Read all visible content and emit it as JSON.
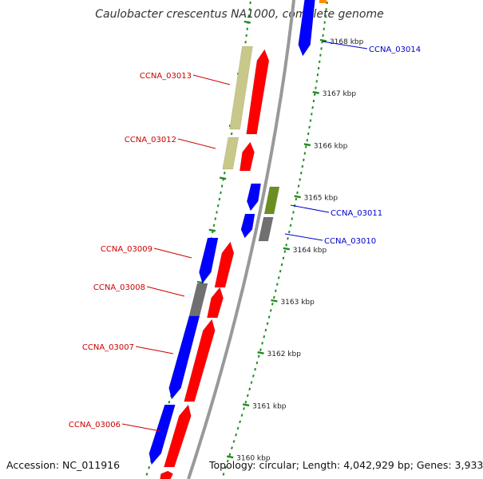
{
  "title": "Caulobacter crescentus NA1000, complete genome",
  "footer": {
    "accession": "Accession: NC_011916",
    "topology": "Topology: circular; Length: 4,042,929 bp; Genes: 3,933"
  },
  "colors": {
    "forward": "#ff0000",
    "reverse": "#0000ff",
    "olive": "#c8c88a",
    "green": "#6b8e23",
    "gray": "#707070",
    "backbone": "#999999",
    "ticks": "#228b22",
    "orange": "#ff8c00",
    "label_forward": "#cc0000",
    "label_reverse": "#0000cc"
  },
  "kbp_labels": [
    "3168 kbp",
    "3167 kbp",
    "3166 kbp",
    "3165 kbp",
    "3164 kbp",
    "3163 kbp",
    "3162 kbp",
    "3161 kbp",
    "3160 kbp"
  ],
  "genes": [
    {
      "name": "CCNA_03014",
      "side": "right"
    },
    {
      "name": "CCNA_03013",
      "side": "left"
    },
    {
      "name": "CCNA_03012",
      "side": "left"
    },
    {
      "name": "CCNA_03011",
      "side": "right"
    },
    {
      "name": "CCNA_03010",
      "side": "right"
    },
    {
      "name": "CCNA_03009",
      "side": "left"
    },
    {
      "name": "CCNA_03008",
      "side": "left"
    },
    {
      "name": "CCNA_03007",
      "side": "left"
    },
    {
      "name": "CCNA_03006",
      "side": "left"
    }
  ]
}
